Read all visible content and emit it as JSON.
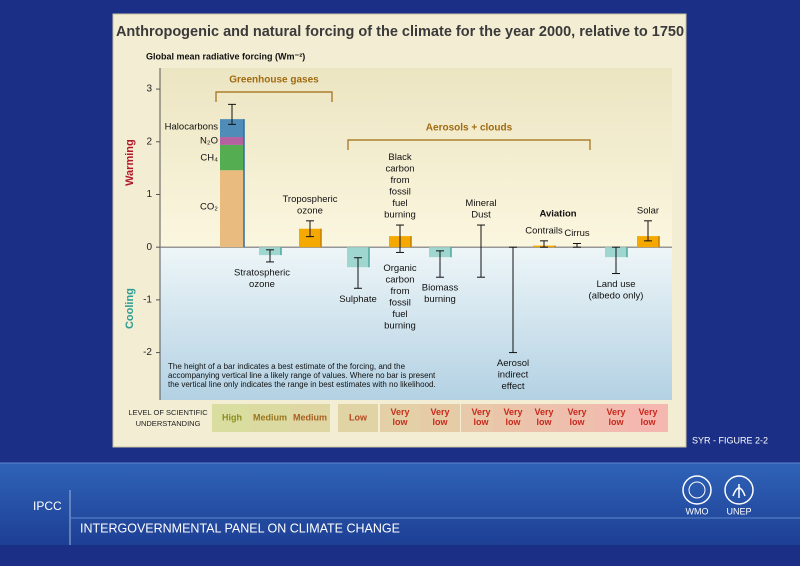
{
  "slide": {
    "caption": "SYR - FIGURE 2-2",
    "organization_short": "IPCC",
    "organization": "INTERGOVERNMENTAL PANEL ON CLIMATE CHANGE",
    "logos": [
      "WMO",
      "UNEP"
    ]
  },
  "chart_data": {
    "type": "bar",
    "title": "Anthropogenic and natural forcing of the climate for the year 2000, relative to 1750",
    "y_label": "Global mean radiative forcing (Wm⁻²)",
    "ylim": [
      -2.9,
      3.4
    ],
    "yticks": [
      3,
      2,
      1,
      0,
      -1,
      -2
    ],
    "annotations": {
      "warming": "Warming",
      "cooling": "Cooling"
    },
    "groups": [
      "Greenhouse gases",
      "Aerosols + clouds",
      "Aviation"
    ],
    "greenhouse": {
      "components": [
        {
          "name": "CO₂",
          "value": 1.46,
          "color": "#e9bb7e"
        },
        {
          "name": "CH₄",
          "value": 0.48,
          "color": "#55ad52"
        },
        {
          "name": "N₂O",
          "value": 0.15,
          "color": "#b3629f"
        },
        {
          "name": "Halocarbons",
          "value": 0.34,
          "color": "#4f8db8"
        }
      ],
      "range": [
        2.33,
        2.71
      ]
    },
    "forcings": [
      {
        "label": [
          "Stratospheric",
          "ozone"
        ],
        "value": -0.15,
        "range": [
          -0.28,
          -0.05
        ],
        "color": "#9fd6cf"
      },
      {
        "label": [
          "Tropospheric",
          "ozone"
        ],
        "value": 0.35,
        "range": [
          0.2,
          0.5
        ],
        "color": "#f5a800"
      },
      {
        "label": [
          "Sulphate"
        ],
        "value": -0.38,
        "range": [
          -0.78,
          -0.2
        ],
        "color": "#9fd6cf"
      },
      {
        "label": [
          "Black",
          "carbon",
          "from",
          "fossil",
          "fuel",
          "burning"
        ],
        "label_below": [
          "Organic",
          "carbon",
          "from",
          "fossil",
          "fuel",
          "burning"
        ],
        "value": 0.21,
        "range": [
          -0.1,
          0.42
        ],
        "color": "#f5a800"
      },
      {
        "label": [
          "Biomass",
          "burning"
        ],
        "value": -0.19,
        "range": [
          -0.57,
          -0.07
        ],
        "color": "#9fd6cf"
      },
      {
        "label": [
          "Mineral",
          "Dust"
        ],
        "value": null,
        "range": [
          -0.57,
          0.42
        ],
        "color": "#9fd6cf"
      },
      {
        "label": [
          "Aerosol",
          "indirect",
          "effect"
        ],
        "value": null,
        "range": [
          -2.0,
          0
        ],
        "color": "#9fd6cf"
      },
      {
        "label": [
          "Contrails"
        ],
        "value": 0.03,
        "range": [
          0,
          0.12
        ],
        "color": "#f5a800"
      },
      {
        "label": [
          "Cirrus"
        ],
        "value": null,
        "range": [
          0,
          0.07
        ],
        "color": "#f5a800"
      },
      {
        "label": [
          "Land use",
          "(albedo only)"
        ],
        "value": -0.19,
        "range": [
          -0.5,
          0
        ],
        "color": "#9fd6cf"
      },
      {
        "label": [
          "Solar"
        ],
        "value": 0.21,
        "range": [
          0.12,
          0.5
        ],
        "color": "#f5a800"
      }
    ],
    "understanding_title": [
      "LEVEL OF SCIENTIFIC",
      "UNDERSTANDING"
    ],
    "understanding": [
      "High",
      "Medium",
      "Medium",
      "Low",
      "Very low",
      "Very low",
      "Very low",
      "Very low",
      "Very low",
      "Very low",
      "Very low",
      "Very low"
    ],
    "note": [
      "The height of a bar indicates a best estimate of the forcing, and the",
      "accompanying vertical line a likely range of values.  Where no bar is present",
      "the vertical line only indicates the range in best estimates with no likelihood."
    ]
  }
}
